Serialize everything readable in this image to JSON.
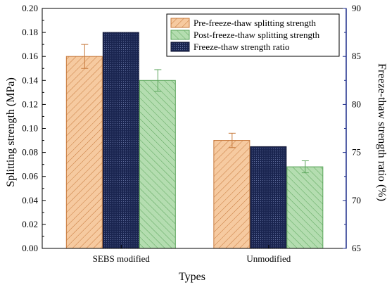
{
  "chart_data": {
    "type": "bar",
    "title": "",
    "xlabel": "Types",
    "ylabel": "Splitting strength (MPa)",
    "y2label": "Freeze-thaw strength ratio (%)",
    "categories": [
      "SEBS modified",
      "Unmodified"
    ],
    "ylim": [
      0,
      0.2
    ],
    "y2lim": [
      65,
      90
    ],
    "yticks": [
      "0.00",
      "0.02",
      "0.04",
      "0.06",
      "0.08",
      "0.10",
      "0.12",
      "0.14",
      "0.16",
      "0.18",
      "0.20"
    ],
    "y2ticks": [
      "65",
      "70",
      "75",
      "80",
      "85",
      "90"
    ],
    "grid": false,
    "legend_position": "top-right",
    "series": [
      {
        "name": "Pre-freeze-thaw splitting strength",
        "axis": "left",
        "values": [
          0.16,
          0.09
        ],
        "errors": [
          0.01,
          0.006
        ],
        "color": "#f6caa0",
        "edge": "#c77a3d",
        "hatch": "diag-right"
      },
      {
        "name": "Post-freeze-thaw splitting strength",
        "axis": "left",
        "values": [
          0.14,
          0.068
        ],
        "errors": [
          0.009,
          0.005
        ],
        "color": "#b4ddb0",
        "edge": "#5aa55a",
        "hatch": "diag-left"
      },
      {
        "name": "Freeze-thaw strength ratio",
        "axis": "right",
        "values": [
          87.5,
          75.6
        ],
        "errors": [
          0,
          0
        ],
        "color": "#1a2550",
        "edge": "#0d1230",
        "hatch": "dots"
      }
    ],
    "bar_order": [
      0,
      2,
      1
    ]
  }
}
